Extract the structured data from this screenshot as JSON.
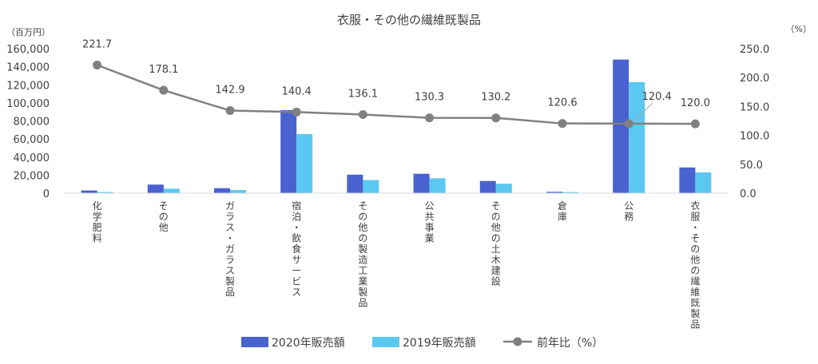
{
  "chart_data": {
    "type": "bar",
    "title": "衣服・その他の繊維既製品",
    "y_unit_left": "（百万円）",
    "y_unit_right": "（%）",
    "categories": [
      "化学肥料",
      "その他",
      "ガラス・ガラス製品",
      "宿泊・飲食サービス",
      "その他の製造工業製品",
      "公共事業",
      "その他の土木建設",
      "倉庫",
      "公務",
      "衣服・その他の繊維既製品"
    ],
    "series": [
      {
        "name": "2020年販売額",
        "type": "bar",
        "axis": "left",
        "color": "#4a62cf",
        "values": [
          3000,
          9500,
          5500,
          92000,
          20500,
          21500,
          13500,
          1500,
          148000,
          28500
        ]
      },
      {
        "name": "2019年販売額",
        "type": "bar",
        "axis": "left",
        "color": "#5bc8f2",
        "values": [
          1300,
          5000,
          3500,
          65500,
          14500,
          16500,
          10500,
          1200,
          123000,
          23000
        ]
      },
      {
        "name": "前年比（%）",
        "type": "line",
        "axis": "right",
        "color": "#808080",
        "values": [
          221.7,
          178.1,
          142.9,
          140.4,
          136.1,
          130.3,
          130.2,
          120.6,
          120.4,
          120.0
        ]
      }
    ],
    "data_labels": [
      "221.7",
      "178.1",
      "142.9",
      "140.4",
      "136.1",
      "130.3",
      "130.2",
      "120.6",
      "120.4",
      "120.0"
    ],
    "y_left": {
      "min": 0,
      "max": 160000,
      "ticks": [
        "0",
        "20,000",
        "40,000",
        "60,000",
        "80,000",
        "100,000",
        "120,000",
        "140,000",
        "160,000"
      ]
    },
    "y_right": {
      "min": 0,
      "max": 250,
      "ticks": [
        "0.0",
        "50.0",
        "100.0",
        "150.0",
        "200.0",
        "250.0"
      ]
    },
    "legend_position": "bottom",
    "grid": false
  }
}
